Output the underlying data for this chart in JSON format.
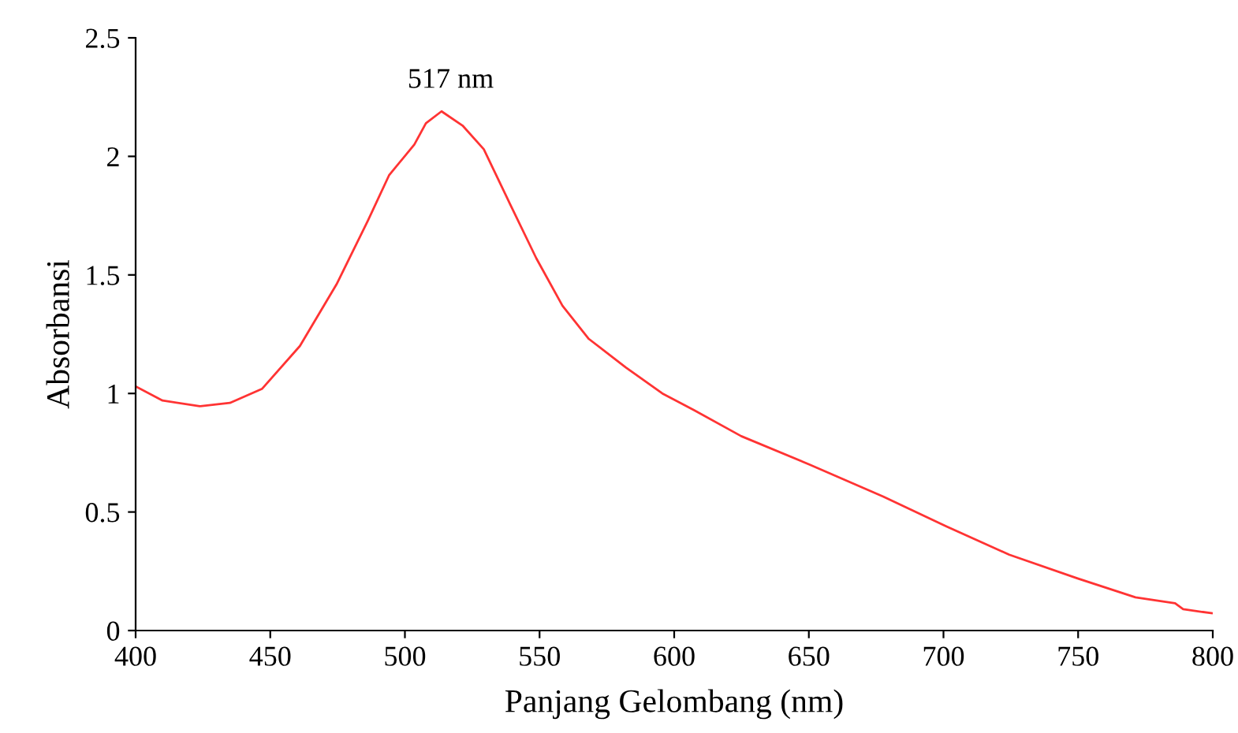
{
  "chart_data": {
    "type": "line",
    "xlabel": "Panjang Gelombang (nm)",
    "ylabel": "Absorbansi",
    "annotations": [
      {
        "text": "517 nm",
        "x": 517,
        "y": 2.19
      }
    ],
    "series": [
      {
        "color": "#ff3333",
        "x": [
          400,
          410,
          423.8,
          435,
          447,
          461,
          474.6,
          486.3,
          494.1,
          503.5,
          507.8,
          513.6,
          521.4,
          529.3,
          539,
          548.8,
          558.5,
          568.3,
          582,
          595.6,
          607.3,
          624.9,
          650.3,
          677.6,
          701,
          724.4,
          749.8,
          771.3,
          786,
          789,
          799.6
        ],
        "values": [
          1.03,
          0.97,
          0.946,
          0.96,
          1.02,
          1.2,
          1.46,
          1.73,
          1.92,
          2.05,
          2.14,
          2.19,
          2.13,
          2.03,
          1.8,
          1.57,
          1.37,
          1.23,
          1.11,
          1.0,
          0.93,
          0.82,
          0.7,
          0.565,
          0.44,
          0.32,
          0.22,
          0.14,
          0.115,
          0.09,
          0.073
        ]
      }
    ],
    "xlim": [
      400,
      800
    ],
    "xticks": [
      400,
      450,
      500,
      550,
      600,
      650,
      700,
      750,
      800
    ],
    "ylim": [
      0,
      2.5
    ],
    "yticks": [
      0,
      0.5,
      1,
      1.5,
      2,
      2.5
    ],
    "grid": false,
    "marker": "none",
    "line_style": "solid"
  }
}
